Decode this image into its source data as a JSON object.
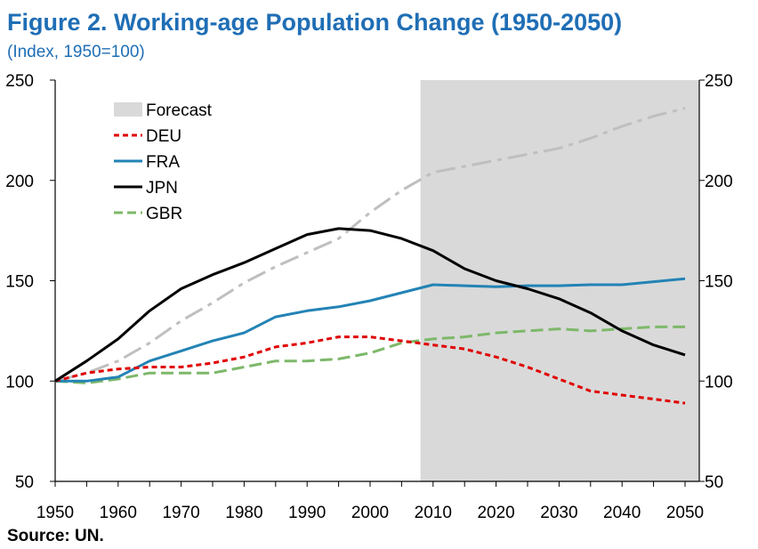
{
  "title": "Figure 2. Working-age Population Change (1950-2050)",
  "subtitle": "(Index, 1950=100)",
  "source": "Source: UN.",
  "chart_data": {
    "type": "line",
    "title": "Figure 2. Working-age Population Change (1950-2050)",
    "subtitle": "(Index, 1950=100)",
    "xlim": [
      1950,
      2050
    ],
    "ylim": [
      50,
      250
    ],
    "x_ticks": [
      "1950",
      "1960",
      "1970",
      "1980",
      "1990",
      "2000",
      "2010",
      "2020",
      "2030",
      "2040",
      "2050"
    ],
    "y_ticks": [
      "50",
      "100",
      "150",
      "200",
      "250"
    ],
    "y_axis_right": true,
    "grid": false,
    "legend_position": "top-left",
    "forecast": {
      "label": "Forecast",
      "from": 2008,
      "to": 2052,
      "color": "#D9D9D9"
    },
    "x": [
      1950,
      1955,
      1960,
      1965,
      1970,
      1975,
      1980,
      1985,
      1990,
      1995,
      2000,
      2005,
      2010,
      2015,
      2020,
      2025,
      2030,
      2035,
      2040,
      2045,
      2050
    ],
    "series": [
      {
        "name": "DEU",
        "color": "#E00000",
        "dash": "6,4",
        "width": 3,
        "values": [
          100,
          104,
          106,
          107,
          107,
          109,
          112,
          117,
          119,
          122,
          122,
          120,
          118,
          116,
          112,
          107,
          101,
          95,
          93,
          91,
          89
        ]
      },
      {
        "name": "FRA",
        "color": "#2383B5",
        "dash": "",
        "width": 3,
        "values": [
          100,
          100,
          102,
          110,
          115,
          120,
          124,
          132,
          135,
          137,
          140,
          144,
          148,
          147.5,
          147,
          147.5,
          147.5,
          148,
          148,
          149.5,
          151
        ]
      },
      {
        "name": "JPN",
        "color": "#000000",
        "dash": "",
        "width": 3,
        "values": [
          100,
          110,
          121,
          135,
          146,
          153,
          159,
          166,
          173,
          176,
          175,
          171,
          165,
          156,
          150,
          146,
          141,
          134,
          125,
          118,
          113
        ]
      },
      {
        "name": "GBR",
        "color": "#7DB86A",
        "dash": "14,6",
        "width": 3,
        "values": [
          100,
          99,
          101,
          104,
          104,
          104,
          107,
          110,
          110,
          111,
          114,
          119,
          121,
          122,
          124,
          125,
          126,
          125,
          126,
          127,
          127
        ]
      },
      {
        "name": "",
        "color": "#BFBFBF",
        "dash": "22,7,5,7",
        "width": 3,
        "legend": false,
        "values": [
          100,
          104,
          110,
          119,
          130,
          139,
          149,
          157,
          164,
          171,
          184,
          195,
          204,
          207,
          210,
          213,
          216,
          221,
          227,
          232,
          236
        ]
      }
    ]
  },
  "source_label": "Source: UN."
}
